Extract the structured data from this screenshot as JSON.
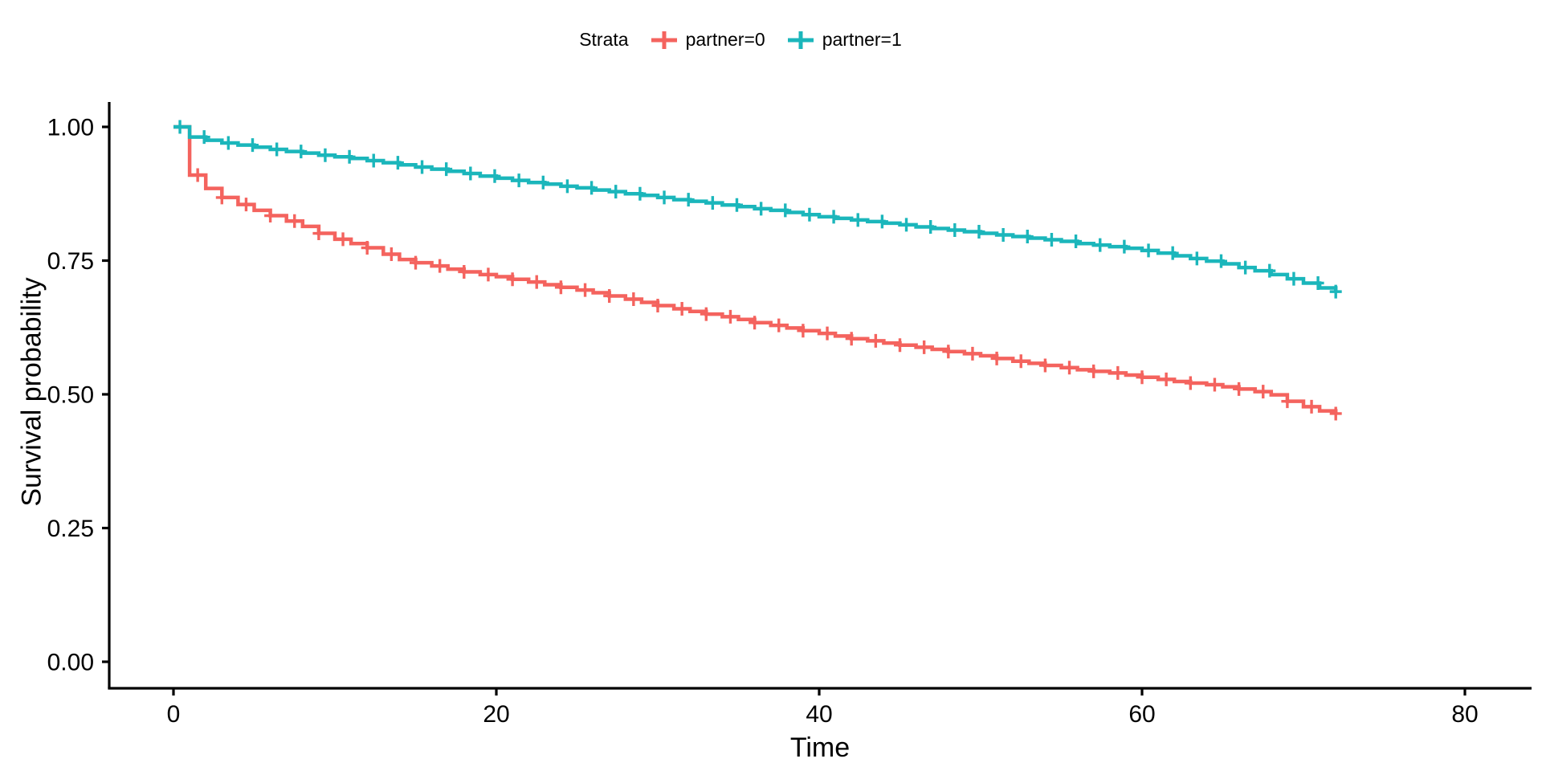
{
  "legend": {
    "title": "Strata",
    "items": [
      {
        "label": "partner=0",
        "color": "#F4635E"
      },
      {
        "label": "partner=1",
        "color": "#1BB6BB"
      }
    ]
  },
  "chart_data": {
    "type": "line",
    "subtype": "kaplan-meier-step-survival",
    "title": "",
    "xlabel": "Time",
    "ylabel": "Survival probability",
    "xlim": [
      0,
      80
    ],
    "ylim": [
      0.0,
      1.0
    ],
    "grid": false,
    "legend_position": "top",
    "x_tick_values": [
      0,
      20,
      40,
      60,
      80
    ],
    "x_tick_labels": [
      "0",
      "20",
      "40",
      "60",
      "80"
    ],
    "y_tick_values": [
      0,
      0.25,
      0.5,
      0.75,
      1.0
    ],
    "y_tick_labels": [
      "0.00",
      "0.25",
      "0.50",
      "0.75",
      "1.00"
    ],
    "axis_color": "#000000",
    "series": [
      {
        "name": "partner=0",
        "color": "#F4635E",
        "points": [
          [
            0,
            1.0
          ],
          [
            1,
            0.91
          ],
          [
            2,
            0.885
          ],
          [
            3,
            0.868
          ],
          [
            4,
            0.855
          ],
          [
            5,
            0.844
          ],
          [
            6,
            0.834
          ],
          [
            7,
            0.824
          ],
          [
            8,
            0.814
          ],
          [
            9,
            0.801
          ],
          [
            10,
            0.79
          ],
          [
            11,
            0.782
          ],
          [
            12,
            0.774
          ],
          [
            13,
            0.762
          ],
          [
            14,
            0.752
          ],
          [
            15,
            0.746
          ],
          [
            16,
            0.74
          ],
          [
            17,
            0.734
          ],
          [
            18,
            0.729
          ],
          [
            19,
            0.724
          ],
          [
            20,
            0.72
          ],
          [
            21,
            0.715
          ],
          [
            22,
            0.71
          ],
          [
            23,
            0.705
          ],
          [
            24,
            0.7
          ],
          [
            25,
            0.695
          ],
          [
            26,
            0.69
          ],
          [
            27,
            0.684
          ],
          [
            28,
            0.678
          ],
          [
            29,
            0.672
          ],
          [
            30,
            0.666
          ],
          [
            31,
            0.66
          ],
          [
            32,
            0.655
          ],
          [
            33,
            0.65
          ],
          [
            34,
            0.645
          ],
          [
            35,
            0.64
          ],
          [
            36,
            0.634
          ],
          [
            37,
            0.629
          ],
          [
            38,
            0.624
          ],
          [
            39,
            0.619
          ],
          [
            40,
            0.614
          ],
          [
            41,
            0.609
          ],
          [
            42,
            0.604
          ],
          [
            43,
            0.6
          ],
          [
            44,
            0.596
          ],
          [
            45,
            0.592
          ],
          [
            46,
            0.588
          ],
          [
            47,
            0.584
          ],
          [
            48,
            0.58
          ],
          [
            49,
            0.576
          ],
          [
            50,
            0.572
          ],
          [
            51,
            0.567
          ],
          [
            52,
            0.562
          ],
          [
            53,
            0.558
          ],
          [
            54,
            0.554
          ],
          [
            55,
            0.55
          ],
          [
            56,
            0.546
          ],
          [
            57,
            0.543
          ],
          [
            58,
            0.54
          ],
          [
            59,
            0.536
          ],
          [
            60,
            0.532
          ],
          [
            61,
            0.528
          ],
          [
            62,
            0.524
          ],
          [
            63,
            0.521
          ],
          [
            64,
            0.518
          ],
          [
            65,
            0.514
          ],
          [
            66,
            0.51
          ],
          [
            67,
            0.505
          ],
          [
            68,
            0.499
          ],
          [
            69,
            0.487
          ],
          [
            70,
            0.477
          ],
          [
            71,
            0.469
          ],
          [
            72,
            0.464
          ]
        ],
        "censor_times": [
          1.5,
          3,
          4.5,
          6,
          7.5,
          9,
          10.5,
          12,
          13.5,
          15,
          16.5,
          18,
          19.5,
          21,
          22.5,
          24,
          25.5,
          27,
          28.5,
          30,
          31.5,
          33,
          34.5,
          36,
          37.5,
          39,
          40.5,
          42,
          43.5,
          45,
          46.5,
          48,
          49.5,
          51,
          52.5,
          54,
          55.5,
          57,
          58.5,
          60,
          61.5,
          63,
          64.5,
          66,
          67.5,
          69,
          70.5,
          72
        ]
      },
      {
        "name": "partner=1",
        "color": "#1BB6BB",
        "points": [
          [
            0,
            1.0
          ],
          [
            1,
            0.981
          ],
          [
            2,
            0.975
          ],
          [
            3,
            0.97
          ],
          [
            4,
            0.966
          ],
          [
            5,
            0.962
          ],
          [
            6,
            0.958
          ],
          [
            7,
            0.954
          ],
          [
            8,
            0.951
          ],
          [
            9,
            0.947
          ],
          [
            10,
            0.944
          ],
          [
            11,
            0.941
          ],
          [
            12,
            0.937
          ],
          [
            13,
            0.933
          ],
          [
            14,
            0.929
          ],
          [
            15,
            0.925
          ],
          [
            16,
            0.921
          ],
          [
            17,
            0.917
          ],
          [
            18,
            0.913
          ],
          [
            19,
            0.908
          ],
          [
            20,
            0.904
          ],
          [
            21,
            0.9
          ],
          [
            22,
            0.896
          ],
          [
            23,
            0.893
          ],
          [
            24,
            0.889
          ],
          [
            25,
            0.886
          ],
          [
            26,
            0.882
          ],
          [
            27,
            0.879
          ],
          [
            28,
            0.875
          ],
          [
            29,
            0.872
          ],
          [
            30,
            0.868
          ],
          [
            31,
            0.864
          ],
          [
            32,
            0.861
          ],
          [
            33,
            0.858
          ],
          [
            34,
            0.854
          ],
          [
            35,
            0.851
          ],
          [
            36,
            0.847
          ],
          [
            37,
            0.844
          ],
          [
            38,
            0.84
          ],
          [
            39,
            0.836
          ],
          [
            40,
            0.832
          ],
          [
            41,
            0.829
          ],
          [
            42,
            0.826
          ],
          [
            43,
            0.823
          ],
          [
            44,
            0.82
          ],
          [
            45,
            0.817
          ],
          [
            46,
            0.813
          ],
          [
            47,
            0.81
          ],
          [
            48,
            0.807
          ],
          [
            49,
            0.804
          ],
          [
            50,
            0.801
          ],
          [
            51,
            0.798
          ],
          [
            52,
            0.795
          ],
          [
            53,
            0.792
          ],
          [
            54,
            0.789
          ],
          [
            55,
            0.786
          ],
          [
            56,
            0.782
          ],
          [
            57,
            0.779
          ],
          [
            58,
            0.776
          ],
          [
            59,
            0.773
          ],
          [
            60,
            0.769
          ],
          [
            61,
            0.764
          ],
          [
            62,
            0.759
          ],
          [
            63,
            0.754
          ],
          [
            64,
            0.749
          ],
          [
            65,
            0.744
          ],
          [
            66,
            0.737
          ],
          [
            67,
            0.731
          ],
          [
            68,
            0.724
          ],
          [
            69,
            0.716
          ],
          [
            70,
            0.708
          ],
          [
            71,
            0.699
          ],
          [
            72,
            0.692
          ]
        ],
        "censor_times": [
          0.4,
          1.9,
          3.4,
          4.9,
          6.4,
          7.9,
          9.4,
          10.9,
          12.4,
          13.9,
          15.4,
          16.9,
          18.4,
          19.9,
          21.4,
          22.9,
          24.4,
          25.9,
          27.4,
          28.9,
          30.4,
          31.9,
          33.4,
          34.9,
          36.4,
          37.9,
          39.4,
          40.9,
          42.4,
          43.9,
          45.4,
          46.9,
          48.4,
          49.9,
          51.4,
          52.9,
          54.4,
          55.9,
          57.4,
          58.9,
          60.4,
          61.9,
          63.4,
          64.9,
          66.4,
          67.9,
          69.4,
          70.9,
          72
        ]
      }
    ]
  }
}
